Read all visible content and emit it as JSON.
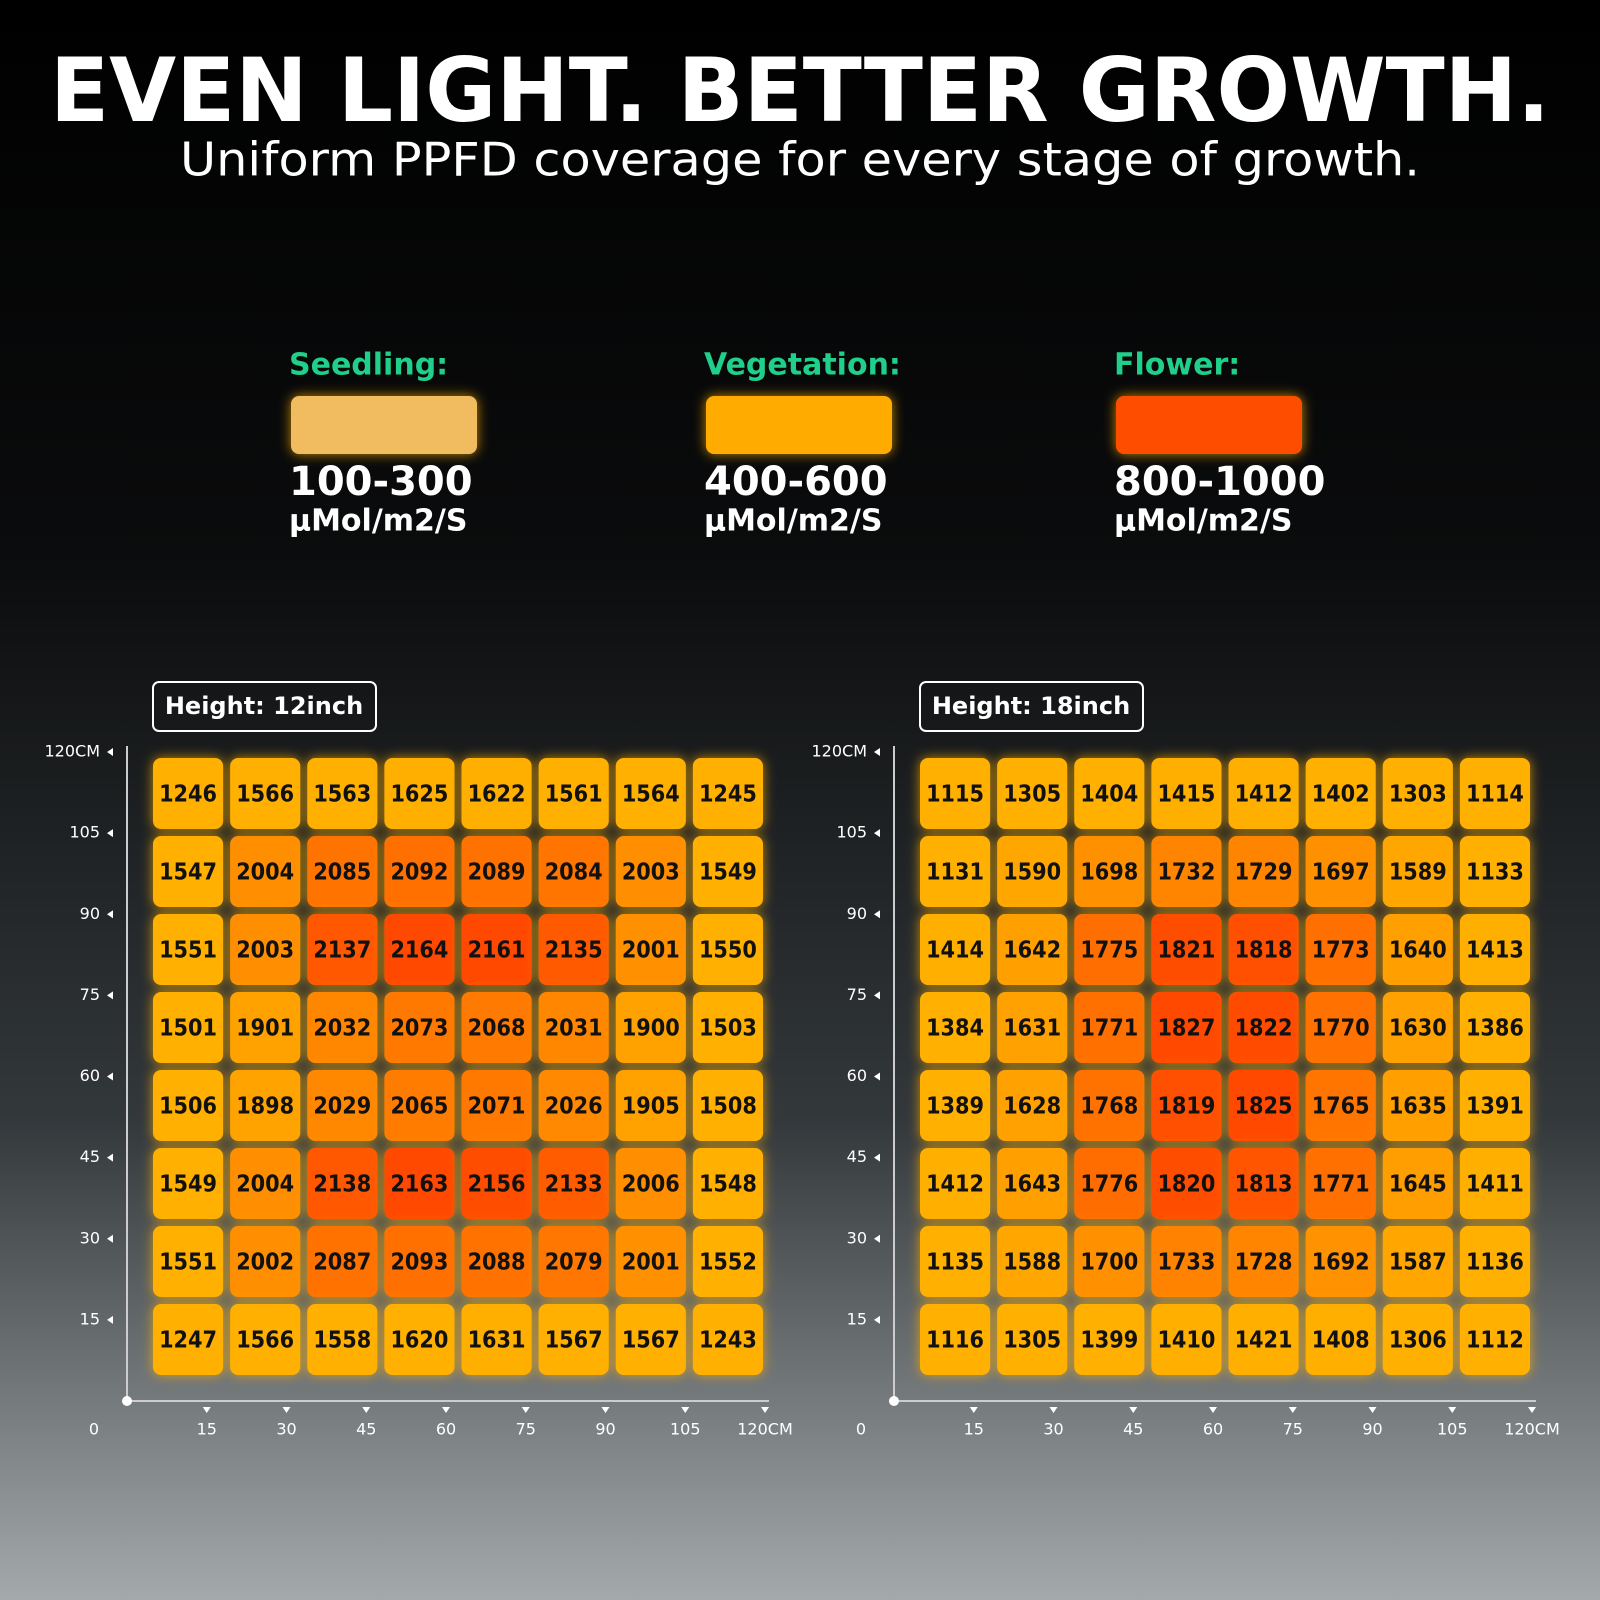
{
  "header": {
    "title": "EVEN LIGHT. BETTER GROWTH.",
    "subtitle": "Uniform PPFD coverage for every stage of growth."
  },
  "legend": [
    {
      "name": "Seedling:",
      "color": "#f0bc5e",
      "range": "100-300",
      "unit": "µMol/m2/S"
    },
    {
      "name": "Vegetation:",
      "color": "#ffab00",
      "range": "400-600",
      "unit": "µMol/m2/S"
    },
    {
      "name": "Flower:",
      "color": "#ff4e00",
      "range": "800-1000",
      "unit": "µMol/m2/S"
    }
  ],
  "chart_data": [
    {
      "type": "heatmap",
      "title": "Height: 12inch",
      "colorscale": [
        "#ffb000",
        "#ff4800"
      ],
      "xlim": [
        0,
        120
      ],
      "ylim": [
        0,
        120
      ],
      "xticks": [
        0,
        15,
        30,
        45,
        60,
        75,
        90,
        105,
        {
          "value": 120,
          "label": "120CM"
        }
      ],
      "yticks": [
        15,
        30,
        45,
        60,
        75,
        90,
        105,
        {
          "value": 120,
          "label": "120CM"
        }
      ],
      "values": [
        [
          1246,
          1566,
          1563,
          1625,
          1622,
          1561,
          1564,
          1245
        ],
        [
          1547,
          2004,
          2085,
          2092,
          2089,
          2084,
          2003,
          1549
        ],
        [
          1551,
          2003,
          2137,
          2164,
          2161,
          2135,
          2001,
          1550
        ],
        [
          1501,
          1901,
          2032,
          2073,
          2068,
          2031,
          1900,
          1503
        ],
        [
          1506,
          1898,
          2029,
          2065,
          2071,
          2026,
          1905,
          1508
        ],
        [
          1549,
          2004,
          2138,
          2163,
          2156,
          2133,
          2006,
          1548
        ],
        [
          1551,
          2002,
          2087,
          2093,
          2088,
          2079,
          2001,
          1552
        ],
        [
          1247,
          1566,
          1558,
          1620,
          1631,
          1567,
          1567,
          1243
        ]
      ]
    },
    {
      "type": "heatmap",
      "title": "Height: 18inch",
      "colorscale": [
        "#ffb000",
        "#ff4800"
      ],
      "xlim": [
        0,
        120
      ],
      "ylim": [
        0,
        120
      ],
      "xticks": [
        0,
        15,
        30,
        45,
        60,
        75,
        90,
        105,
        {
          "value": 120,
          "label": "120CM"
        }
      ],
      "yticks": [
        15,
        30,
        45,
        60,
        75,
        90,
        105,
        {
          "value": 120,
          "label": "120CM"
        }
      ],
      "values": [
        [
          1115,
          1305,
          1404,
          1415,
          1412,
          1402,
          1303,
          1114
        ],
        [
          1131,
          1590,
          1698,
          1732,
          1729,
          1697,
          1589,
          1133
        ],
        [
          1414,
          1642,
          1775,
          1821,
          1818,
          1773,
          1640,
          1413
        ],
        [
          1384,
          1631,
          1771,
          1827,
          1822,
          1770,
          1630,
          1386
        ],
        [
          1389,
          1628,
          1768,
          1819,
          1825,
          1765,
          1635,
          1391
        ],
        [
          1412,
          1643,
          1776,
          1820,
          1813,
          1771,
          1645,
          1411
        ],
        [
          1135,
          1588,
          1700,
          1733,
          1728,
          1692,
          1587,
          1136
        ],
        [
          1116,
          1305,
          1399,
          1410,
          1421,
          1408,
          1306,
          1112
        ]
      ]
    }
  ]
}
